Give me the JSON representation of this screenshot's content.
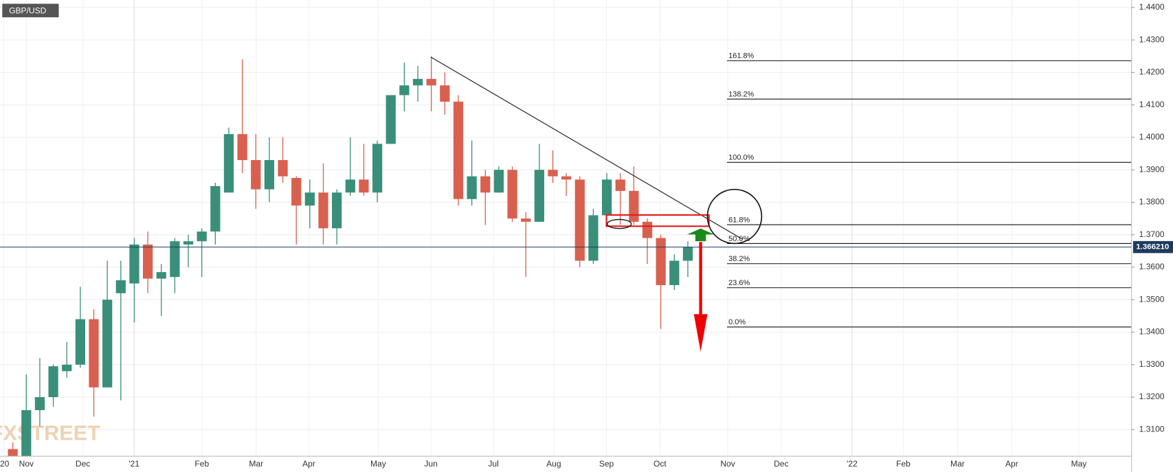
{
  "chart_data": {
    "type": "candlestick",
    "symbol": "GBP/USD",
    "watermark": "FXSTREET",
    "up_color": "#3a8f7a",
    "down_color": "#d9604f",
    "ylim": [
      1.3018,
      1.4423
    ],
    "yticks": [
      {
        "value": 1.31,
        "label": "1.3100"
      },
      {
        "value": 1.32,
        "label": "1.3200"
      },
      {
        "value": 1.33,
        "label": "1.3300"
      },
      {
        "value": 1.34,
        "label": "1.3400"
      },
      {
        "value": 1.35,
        "label": "1.3500"
      },
      {
        "value": 1.36,
        "label": "1.3600"
      },
      {
        "value": 1.37,
        "label": "1.3700"
      },
      {
        "value": 1.38,
        "label": "1.3800"
      },
      {
        "value": 1.39,
        "label": "1.3900"
      },
      {
        "value": 1.4,
        "label": "1.4000"
      },
      {
        "value": 1.41,
        "label": "1.4100"
      },
      {
        "value": 1.42,
        "label": "1.4200"
      },
      {
        "value": 1.43,
        "label": "1.4300"
      },
      {
        "value": 1.44,
        "label": "1.4400"
      }
    ],
    "x_labels": [
      "'20",
      "Nov",
      "Dec",
      "'21",
      "Feb",
      "Mar",
      "Apr",
      "May",
      "Jun",
      "Jul",
      "Aug",
      "Sep",
      "Oct",
      "Nov",
      "Dec",
      "'22",
      "Feb",
      "Mar",
      "Apr",
      "May"
    ],
    "open": [
      1.304,
      1.3,
      1.316,
      1.32,
      1.328,
      1.33,
      1.344,
      1.323,
      1.352,
      1.355,
      1.367,
      1.3565,
      1.357,
      1.367,
      1.368,
      1.371,
      1.383,
      1.401,
      1.393,
      1.384,
      1.393,
      1.3875,
      1.379,
      1.383,
      1.372,
      1.383,
      1.387,
      1.383,
      1.398,
      1.413,
      1.416,
      1.418,
      1.416,
      1.411,
      1.381,
      1.388,
      1.383,
      1.39,
      1.375,
      1.374,
      1.39,
      1.388,
      1.387,
      1.362,
      1.376,
      1.387,
      1.3835,
      1.374,
      1.369,
      1.3545,
      1.362
    ],
    "high": [
      1.306,
      1.327,
      1.332,
      1.33,
      1.337,
      1.354,
      1.347,
      1.362,
      1.362,
      1.369,
      1.371,
      1.361,
      1.369,
      1.37,
      1.372,
      1.386,
      1.403,
      1.424,
      1.401,
      1.4,
      1.4,
      1.388,
      1.387,
      1.392,
      1.384,
      1.4,
      1.398,
      1.399,
      1.413,
      1.423,
      1.422,
      1.425,
      1.42,
      1.413,
      1.399,
      1.39,
      1.391,
      1.391,
      1.377,
      1.398,
      1.396,
      1.389,
      1.388,
      1.378,
      1.389,
      1.389,
      1.391,
      1.375,
      1.37,
      1.364,
      1.368
    ],
    "low": [
      1.299,
      1.298,
      1.311,
      1.317,
      1.326,
      1.329,
      1.314,
      1.323,
      1.319,
      1.343,
      1.352,
      1.345,
      1.352,
      1.36,
      1.357,
      1.367,
      1.383,
      1.389,
      1.378,
      1.38,
      1.386,
      1.367,
      1.372,
      1.367,
      1.367,
      1.382,
      1.382,
      1.38,
      1.398,
      1.408,
      1.411,
      1.408,
      1.407,
      1.379,
      1.379,
      1.373,
      1.383,
      1.374,
      1.357,
      1.374,
      1.386,
      1.382,
      1.36,
      1.361,
      1.374,
      1.373,
      1.373,
      1.361,
      1.341,
      1.353,
      1.357
    ],
    "close": [
      1.299,
      1.316,
      1.32,
      1.3295,
      1.33,
      1.344,
      1.323,
      1.35,
      1.356,
      1.367,
      1.3565,
      1.3585,
      1.368,
      1.368,
      1.371,
      1.385,
      1.401,
      1.393,
      1.384,
      1.393,
      1.388,
      1.379,
      1.383,
      1.372,
      1.383,
      1.387,
      1.383,
      1.398,
      1.413,
      1.416,
      1.418,
      1.416,
      1.411,
      1.381,
      1.388,
      1.383,
      1.39,
      1.375,
      1.374,
      1.39,
      1.388,
      1.387,
      1.362,
      1.376,
      1.387,
      1.3835,
      1.374,
      1.369,
      1.3545,
      1.362,
      1.36621
    ],
    "price": 1.36621,
    "price_label": "1.366210",
    "fib_levels": [
      {
        "value": 1.4236,
        "label": "161.8%"
      },
      {
        "value": 1.4118,
        "label": "138.2%"
      },
      {
        "value": 1.3923,
        "label": "100.0%"
      },
      {
        "value": 1.3731,
        "label": "61.8%"
      },
      {
        "value": 1.3673,
        "label": "50.0%"
      },
      {
        "value": 1.3611,
        "label": "38.2%"
      },
      {
        "value": 1.3537,
        "label": "23.6%"
      },
      {
        "value": 1.3416,
        "label": "0.0%"
      }
    ]
  }
}
